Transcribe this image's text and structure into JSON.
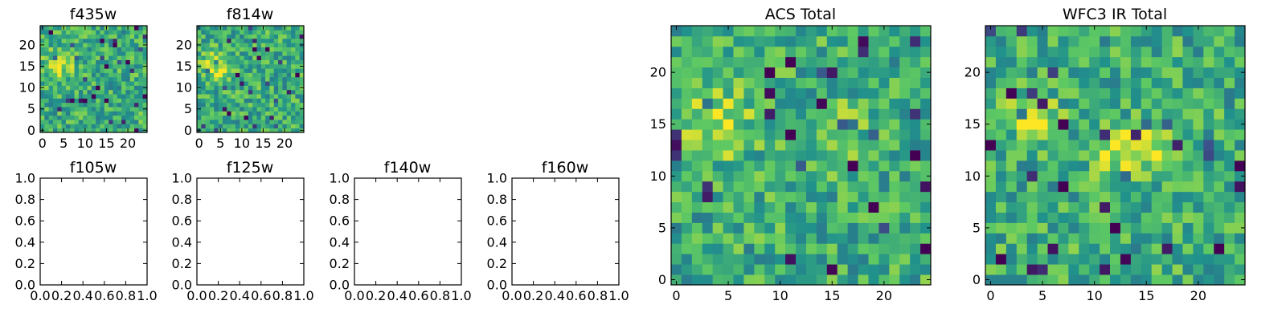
{
  "chart_data": [
    {
      "type": "heatmap",
      "title": "f435w",
      "xlim": [
        -0.5,
        24.5
      ],
      "ylim": [
        -0.5,
        24.5
      ],
      "x_ticks": [
        0,
        5,
        10,
        15,
        20
      ],
      "y_ticks": [
        0,
        5,
        10,
        15,
        20
      ],
      "grid_size": 25,
      "colormap": "viridis",
      "seed": 11,
      "blobs": [
        {
          "x": 4,
          "y": 15,
          "r": 2.5,
          "amp": 0.25
        }
      ],
      "values": []
    },
    {
      "type": "heatmap",
      "title": "f814w",
      "xlim": [
        -0.5,
        24.5
      ],
      "ylim": [
        -0.5,
        24.5
      ],
      "x_ticks": [
        0,
        5,
        10,
        15,
        20
      ],
      "y_ticks": [
        0,
        5,
        10,
        15,
        20
      ],
      "grid_size": 25,
      "colormap": "viridis",
      "seed": 23,
      "blobs": [
        {
          "x": 4,
          "y": 15,
          "r": 2.5,
          "amp": 0.25
        }
      ],
      "values": []
    },
    {
      "type": "line",
      "title": "f105w",
      "xlim": [
        0,
        1
      ],
      "ylim": [
        0,
        1
      ],
      "x_ticks": [
        "0.0",
        "0.2",
        "0.4",
        "0.6",
        "0.8",
        "1.0"
      ],
      "y_ticks": [
        "0.0",
        "0.2",
        "0.4",
        "0.6",
        "0.8",
        "1.0"
      ],
      "series": []
    },
    {
      "type": "line",
      "title": "f125w",
      "xlim": [
        0,
        1
      ],
      "ylim": [
        0,
        1
      ],
      "x_ticks": [
        "0.0",
        "0.2",
        "0.4",
        "0.6",
        "0.8",
        "1.0"
      ],
      "y_ticks": [
        "0.0",
        "0.2",
        "0.4",
        "0.6",
        "0.8",
        "1.0"
      ],
      "series": []
    },
    {
      "type": "line",
      "title": "f140w",
      "xlim": [
        0,
        1
      ],
      "ylim": [
        0,
        1
      ],
      "x_ticks": [
        "0.0",
        "0.2",
        "0.4",
        "0.6",
        "0.8",
        "1.0"
      ],
      "y_ticks": [
        "0.0",
        "0.2",
        "0.4",
        "0.6",
        "0.8",
        "1.0"
      ],
      "series": []
    },
    {
      "type": "line",
      "title": "f160w",
      "xlim": [
        0,
        1
      ],
      "ylim": [
        0,
        1
      ],
      "x_ticks": [
        "0.0",
        "0.2",
        "0.4",
        "0.6",
        "0.8",
        "1.0"
      ],
      "y_ticks": [
        "0.0",
        "0.2",
        "0.4",
        "0.6",
        "0.8",
        "1.0"
      ],
      "series": []
    },
    {
      "type": "heatmap",
      "title": "ACS Total",
      "xlim": [
        -0.5,
        24.5
      ],
      "ylim": [
        -0.5,
        24.5
      ],
      "x_ticks": [
        0,
        5,
        10,
        15,
        20
      ],
      "y_ticks": [
        0,
        5,
        10,
        15,
        20
      ],
      "grid_size": 25,
      "colormap": "viridis",
      "seed": 37,
      "blobs": [
        {
          "x": 4,
          "y": 15,
          "r": 2.5,
          "amp": 0.25
        },
        {
          "x": 16,
          "y": 14,
          "r": 2.5,
          "amp": 0.12
        }
      ],
      "values": []
    },
    {
      "type": "heatmap",
      "title": "WFC3 IR Total",
      "xlim": [
        -0.5,
        24.5
      ],
      "ylim": [
        -0.5,
        24.5
      ],
      "x_ticks": [
        0,
        5,
        10,
        15,
        20
      ],
      "y_ticks": [
        0,
        5,
        10,
        15,
        20
      ],
      "grid_size": 25,
      "colormap": "viridis",
      "seed": 53,
      "blobs": [
        {
          "x": 4,
          "y": 15.5,
          "r": 1.5,
          "amp": 0.4
        },
        {
          "x": 12,
          "y": 12.5,
          "r": 1.6,
          "amp": 0.33
        },
        {
          "x": 16,
          "y": 13,
          "r": 1.6,
          "amp": 0.28
        }
      ],
      "values": []
    }
  ]
}
